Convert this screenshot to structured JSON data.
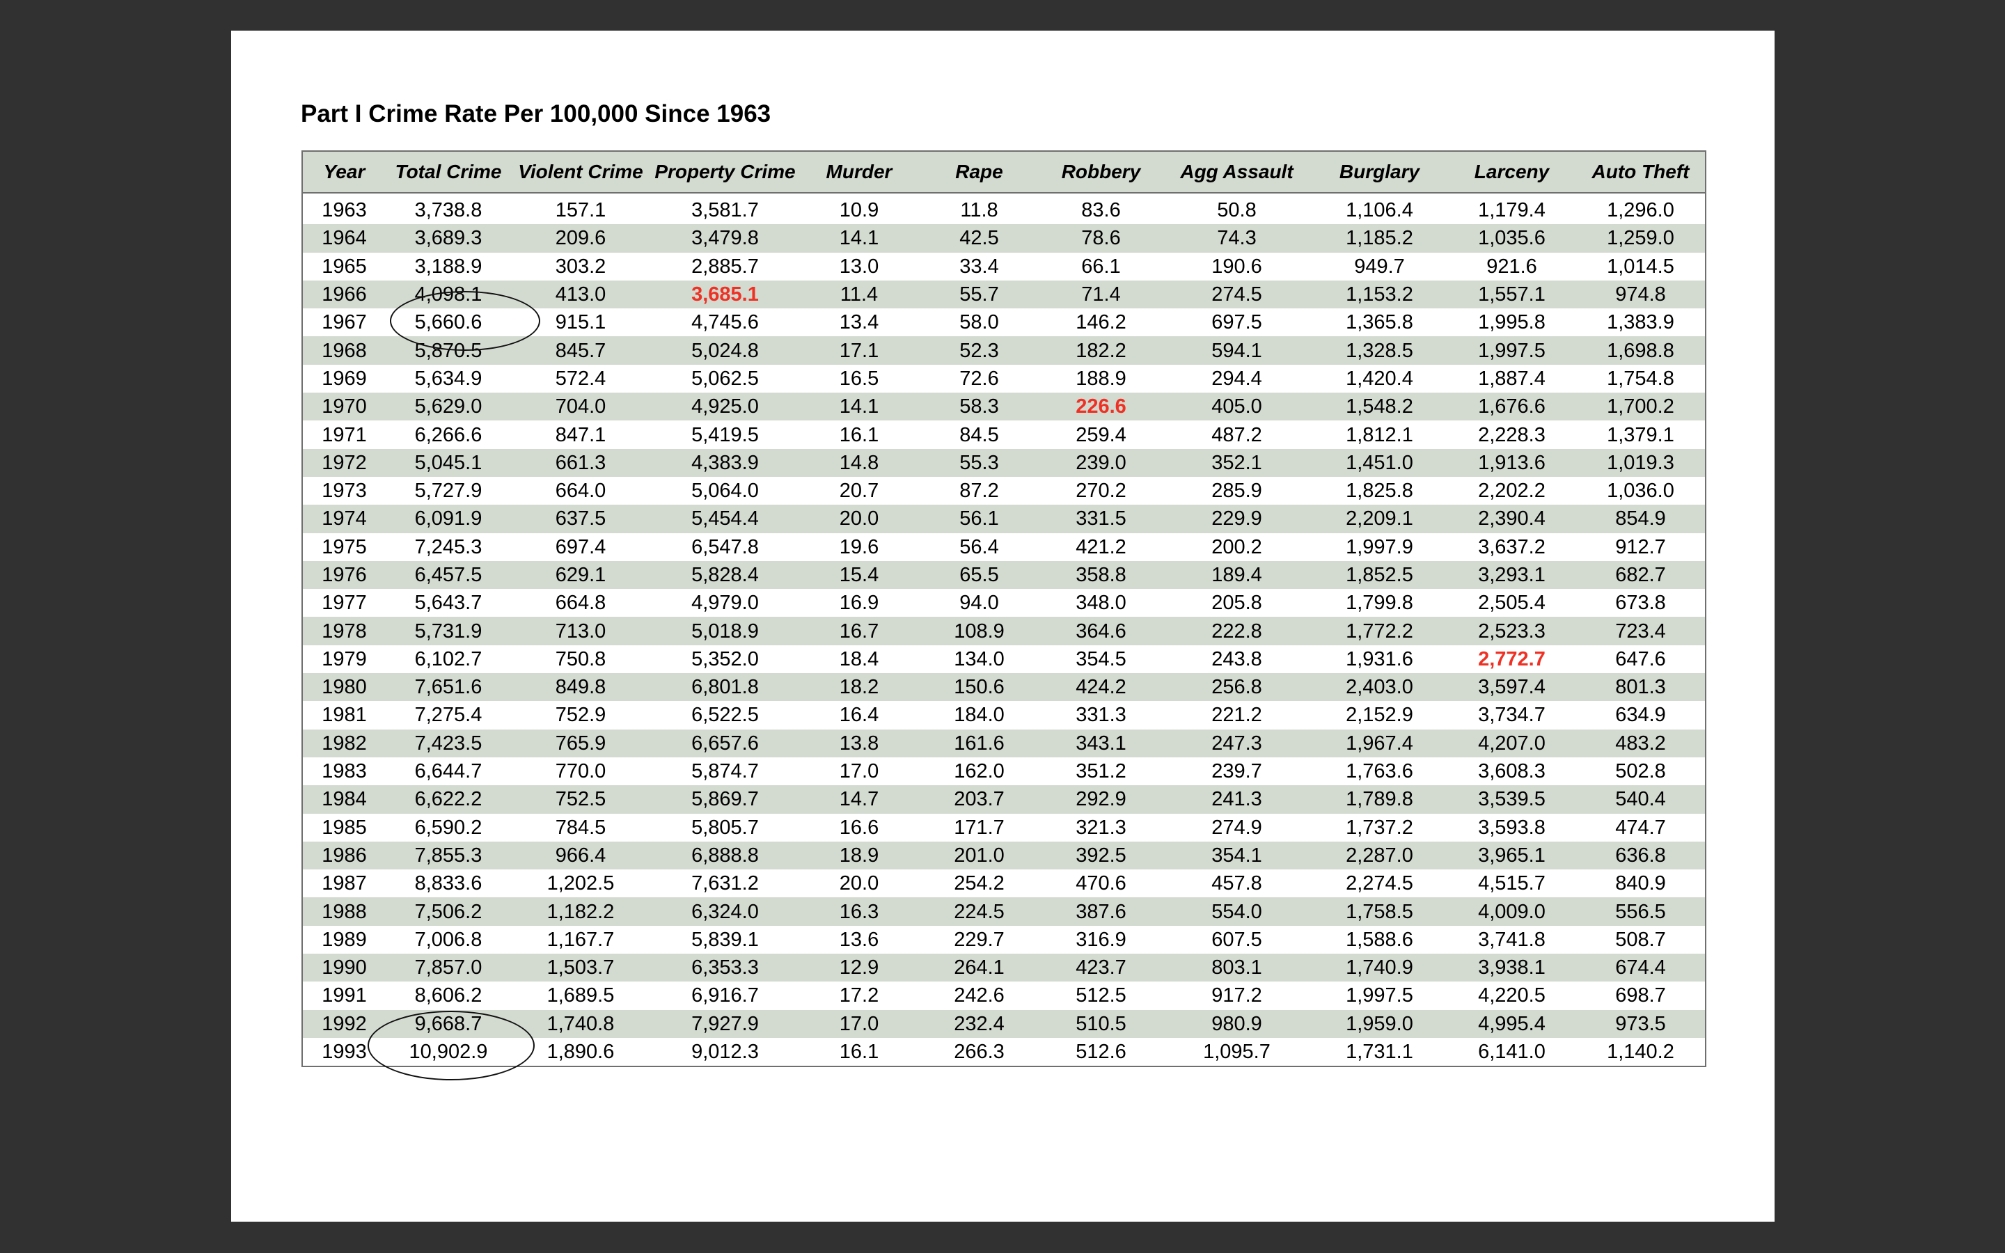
{
  "title": "Part I Crime Rate Per 100,000 Since 1963",
  "columns": [
    "Year",
    "Total Crime",
    "Violent Crime",
    "Property Crime",
    "Murder",
    "Rape",
    "Robbery",
    "Agg Assault",
    "Burglary",
    "Larceny",
    "Auto Theft"
  ],
  "rows": [
    [
      "1963",
      "3,738.8",
      "157.1",
      "3,581.7",
      "10.9",
      "11.8",
      "83.6",
      "50.8",
      "1,106.4",
      "1,179.4",
      "1,296.0"
    ],
    [
      "1964",
      "3,689.3",
      "209.6",
      "3,479.8",
      "14.1",
      "42.5",
      "78.6",
      "74.3",
      "1,185.2",
      "1,035.6",
      "1,259.0"
    ],
    [
      "1965",
      "3,188.9",
      "303.2",
      "2,885.7",
      "13.0",
      "33.4",
      "66.1",
      "190.6",
      "949.7",
      "921.6",
      "1,014.5"
    ],
    [
      "1966",
      "4,098.1",
      "413.0",
      "3,685.1",
      "11.4",
      "55.7",
      "71.4",
      "274.5",
      "1,153.2",
      "1,557.1",
      "974.8"
    ],
    [
      "1967",
      "5,660.6",
      "915.1",
      "4,745.6",
      "13.4",
      "58.0",
      "146.2",
      "697.5",
      "1,365.8",
      "1,995.8",
      "1,383.9"
    ],
    [
      "1968",
      "5,870.5",
      "845.7",
      "5,024.8",
      "17.1",
      "52.3",
      "182.2",
      "594.1",
      "1,328.5",
      "1,997.5",
      "1,698.8"
    ],
    [
      "1969",
      "5,634.9",
      "572.4",
      "5,062.5",
      "16.5",
      "72.6",
      "188.9",
      "294.4",
      "1,420.4",
      "1,887.4",
      "1,754.8"
    ],
    [
      "1970",
      "5,629.0",
      "704.0",
      "4,925.0",
      "14.1",
      "58.3",
      "226.6",
      "405.0",
      "1,548.2",
      "1,676.6",
      "1,700.2"
    ],
    [
      "1971",
      "6,266.6",
      "847.1",
      "5,419.5",
      "16.1",
      "84.5",
      "259.4",
      "487.2",
      "1,812.1",
      "2,228.3",
      "1,379.1"
    ],
    [
      "1972",
      "5,045.1",
      "661.3",
      "4,383.9",
      "14.8",
      "55.3",
      "239.0",
      "352.1",
      "1,451.0",
      "1,913.6",
      "1,019.3"
    ],
    [
      "1973",
      "5,727.9",
      "664.0",
      "5,064.0",
      "20.7",
      "87.2",
      "270.2",
      "285.9",
      "1,825.8",
      "2,202.2",
      "1,036.0"
    ],
    [
      "1974",
      "6,091.9",
      "637.5",
      "5,454.4",
      "20.0",
      "56.1",
      "331.5",
      "229.9",
      "2,209.1",
      "2,390.4",
      "854.9"
    ],
    [
      "1975",
      "7,245.3",
      "697.4",
      "6,547.8",
      "19.6",
      "56.4",
      "421.2",
      "200.2",
      "1,997.9",
      "3,637.2",
      "912.7"
    ],
    [
      "1976",
      "6,457.5",
      "629.1",
      "5,828.4",
      "15.4",
      "65.5",
      "358.8",
      "189.4",
      "1,852.5",
      "3,293.1",
      "682.7"
    ],
    [
      "1977",
      "5,643.7",
      "664.8",
      "4,979.0",
      "16.9",
      "94.0",
      "348.0",
      "205.8",
      "1,799.8",
      "2,505.4",
      "673.8"
    ],
    [
      "1978",
      "5,731.9",
      "713.0",
      "5,018.9",
      "16.7",
      "108.9",
      "364.6",
      "222.8",
      "1,772.2",
      "2,523.3",
      "723.4"
    ],
    [
      "1979",
      "6,102.7",
      "750.8",
      "5,352.0",
      "18.4",
      "134.0",
      "354.5",
      "243.8",
      "1,931.6",
      "2,772.7",
      "647.6"
    ],
    [
      "1980",
      "7,651.6",
      "849.8",
      "6,801.8",
      "18.2",
      "150.6",
      "424.2",
      "256.8",
      "2,403.0",
      "3,597.4",
      "801.3"
    ],
    [
      "1981",
      "7,275.4",
      "752.9",
      "6,522.5",
      "16.4",
      "184.0",
      "331.3",
      "221.2",
      "2,152.9",
      "3,734.7",
      "634.9"
    ],
    [
      "1982",
      "7,423.5",
      "765.9",
      "6,657.6",
      "13.8",
      "161.6",
      "343.1",
      "247.3",
      "1,967.4",
      "4,207.0",
      "483.2"
    ],
    [
      "1983",
      "6,644.7",
      "770.0",
      "5,874.7",
      "17.0",
      "162.0",
      "351.2",
      "239.7",
      "1,763.6",
      "3,608.3",
      "502.8"
    ],
    [
      "1984",
      "6,622.2",
      "752.5",
      "5,869.7",
      "14.7",
      "203.7",
      "292.9",
      "241.3",
      "1,789.8",
      "3,539.5",
      "540.4"
    ],
    [
      "1985",
      "6,590.2",
      "784.5",
      "5,805.7",
      "16.6",
      "171.7",
      "321.3",
      "274.9",
      "1,737.2",
      "3,593.8",
      "474.7"
    ],
    [
      "1986",
      "7,855.3",
      "966.4",
      "6,888.8",
      "18.9",
      "201.0",
      "392.5",
      "354.1",
      "2,287.0",
      "3,965.1",
      "636.8"
    ],
    [
      "1987",
      "8,833.6",
      "1,202.5",
      "7,631.2",
      "20.0",
      "254.2",
      "470.6",
      "457.8",
      "2,274.5",
      "4,515.7",
      "840.9"
    ],
    [
      "1988",
      "7,506.2",
      "1,182.2",
      "6,324.0",
      "16.3",
      "224.5",
      "387.6",
      "554.0",
      "1,758.5",
      "4,009.0",
      "556.5"
    ],
    [
      "1989",
      "7,006.8",
      "1,167.7",
      "5,839.1",
      "13.6",
      "229.7",
      "316.9",
      "607.5",
      "1,588.6",
      "3,741.8",
      "508.7"
    ],
    [
      "1990",
      "7,857.0",
      "1,503.7",
      "6,353.3",
      "12.9",
      "264.1",
      "423.7",
      "803.1",
      "1,740.9",
      "3,938.1",
      "674.4"
    ],
    [
      "1991",
      "8,606.2",
      "1,689.5",
      "6,916.7",
      "17.2",
      "242.6",
      "512.5",
      "917.2",
      "1,997.5",
      "4,220.5",
      "698.7"
    ],
    [
      "1992",
      "9,668.7",
      "1,740.8",
      "7,927.9",
      "17.0",
      "232.4",
      "510.5",
      "980.9",
      "1,959.0",
      "4,995.4",
      "973.5"
    ],
    [
      "1993",
      "10,902.9",
      "1,890.6",
      "9,012.3",
      "16.1",
      "266.3",
      "512.6",
      "1,095.7",
      "1,731.1",
      "6,141.0",
      "1,140.2"
    ]
  ],
  "highlights": [
    {
      "year": "1966",
      "column": "Property Crime"
    },
    {
      "year": "1970",
      "column": "Robbery"
    },
    {
      "year": "1979",
      "column": "Larceny"
    }
  ],
  "circled": [
    {
      "year": "1967",
      "column": "Total Crime"
    },
    {
      "year": "1993",
      "column": "Total Crime"
    }
  ],
  "colors": {
    "highlight": "#ee3124",
    "stripe": "#d3dbd1",
    "background": "#313131"
  }
}
